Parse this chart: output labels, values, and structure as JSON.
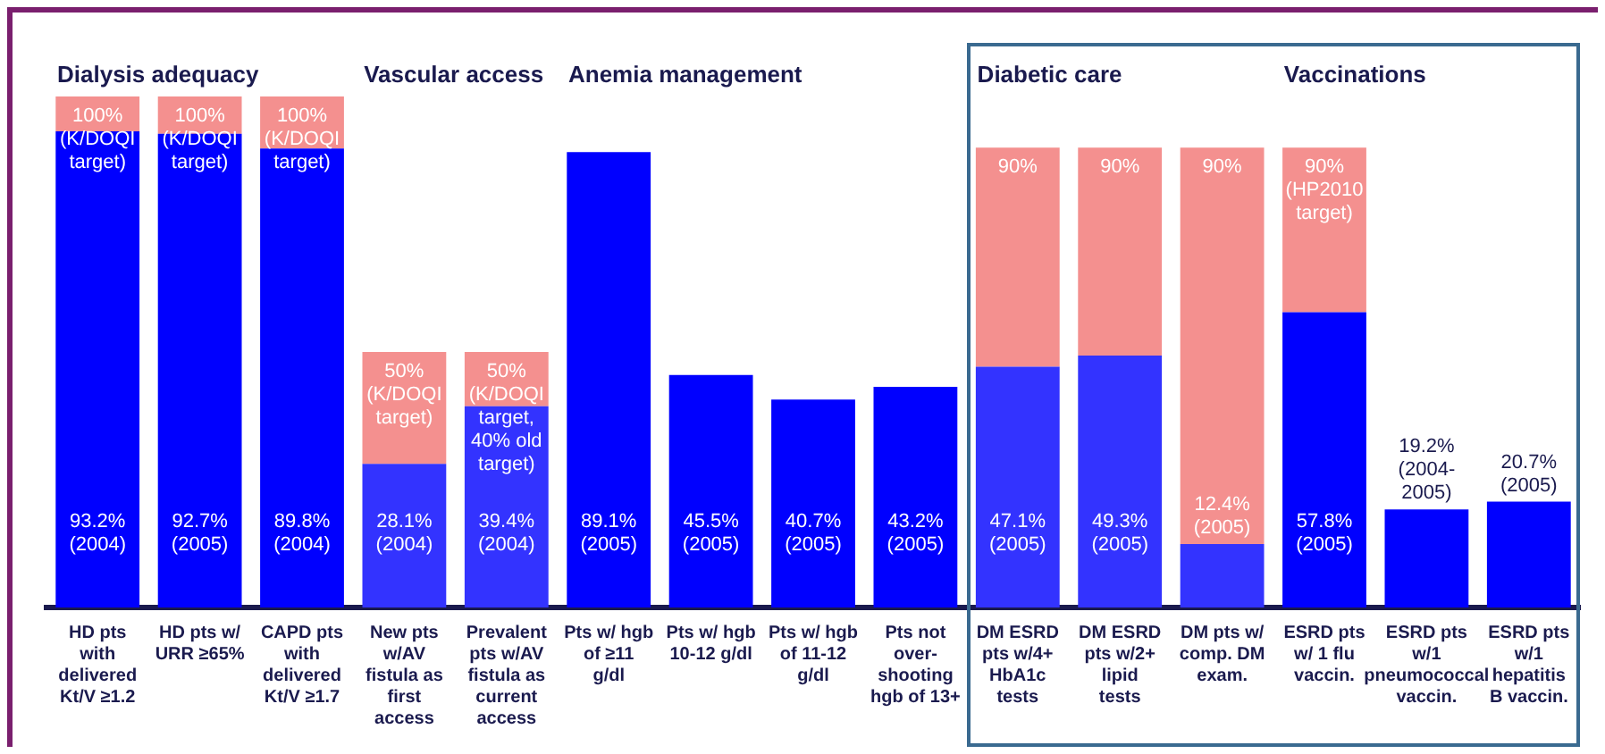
{
  "chart_data": {
    "type": "bar",
    "stacked": true,
    "categories": [
      "HD pts with delivered Kt/V ≥1.2",
      "HD pts w/ URR ≥65%",
      "CAPD pts with delivered Kt/V ≥1.7",
      "New pts w/AV fistula as first access",
      "Prevalent pts w/AV fistula as current access",
      "Pts w/ hgb of ≥11 g/dl",
      "Pts w/ hgb 10-12 g/dl",
      "Pts w/ hgb of 11-12 g/dl",
      "Pts not over-shooting hgb of 13+",
      "DM ESRD pts w/4+ HbA1c tests",
      "DM ESRD pts w/2+ lipid tests",
      "DM pts w/ comp. DM exam.",
      "ESRD pts w/ 1 flu vaccin.",
      "ESRD pts w/1 pneumococcal vaccin.",
      "ESRD pts w/1 hepatitis B vaccin."
    ],
    "series": [
      {
        "colors": [
          "#0000ff",
          "#0000ff",
          "#0000ff",
          "#3333ff",
          "#3333ff",
          "#0000ff",
          "#0000ff",
          "#0000ff",
          "#0000ff",
          "#3333ff",
          "#3333ff",
          "#3333ff",
          "#0000ff",
          "#0000ff",
          "#0000ff"
        ],
        "values": [
          93.2,
          92.7,
          89.8,
          28.1,
          39.4,
          89.1,
          45.5,
          40.7,
          43.2,
          47.1,
          49.3,
          12.4,
          57.8,
          19.2,
          20.7
        ],
        "value_labels": [
          "93.2%\n(2004)",
          "92.7%\n(2005)",
          "89.8%\n(2004)",
          "28.1%\n(2004)",
          "39.4%\n(2004)",
          "89.1%\n(2005)",
          "45.5%\n(2005)",
          "40.7%\n(2005)",
          "43.2%\n(2005)",
          "47.1%\n(2005)",
          "49.3%\n(2005)",
          "12.4%\n(2005)",
          "57.8%\n(2005)",
          "19.2%\n(2004-\n2005)",
          "20.7%\n(2005)"
        ]
      },
      {
        "color": "#f4908f",
        "values": [
          6.8,
          7.3,
          10.2,
          21.9,
          10.6,
          null,
          null,
          null,
          null,
          42.9,
          40.7,
          77.6,
          32.2,
          null,
          null
        ]
      }
    ],
    "annotations": [
      "Dialysis adequacy",
      "Vascular access",
      "Anemia management",
      "Diabetic care",
      "Vaccinations",
      {
        "text": "100%\n(K/DOQI\ntarget)",
        "x": "HD pts with delivered Kt/V ≥1.2",
        "y": 100
      },
      {
        "text": "100%\n(K/DOQI\ntarget)",
        "x": "HD pts w/ URR ≥65%",
        "y": 100
      },
      {
        "text": "100%\n(K/DOQI\ntarget)",
        "x": "CAPD pts with delivered Kt/V ≥1.7",
        "y": 100
      },
      {
        "text": "50%\n(K/DOQI\ntarget)",
        "x": "New pts w/AV fistula as first access",
        "y": 50
      },
      {
        "text": "50%\n(K/DOQI\ntarget,\n40% old\ntarget)",
        "x": "Prevalent pts w/AV fistula as current access",
        "y": 50
      },
      {
        "text": "90%",
        "x": "DM ESRD pts w/4+ HbA1c tests",
        "y": 90
      },
      {
        "text": "90%",
        "x": "DM ESRD pts w/2+ lipid tests",
        "y": 90
      },
      {
        "text": "90%",
        "x": "DM pts w/ comp. DM exam.",
        "y": 90
      },
      {
        "text": "90%\n(HP2010\ntarget)",
        "x": "ESRD pts w/ 1 flu vaccin.",
        "y": 90
      }
    ],
    "legend": false
  }
}
